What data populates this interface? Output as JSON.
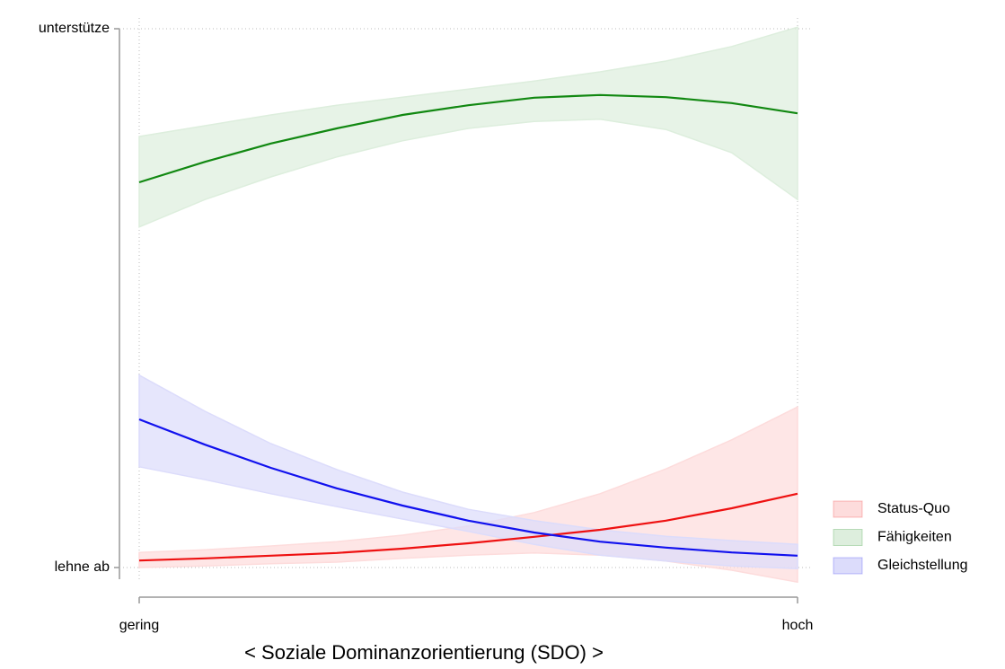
{
  "chart_data": {
    "type": "line",
    "x_label": "< Soziale Dominanzorientierung (SDO) >",
    "x": [
      0,
      0.1,
      0.2,
      0.3,
      0.4,
      0.5,
      0.6,
      0.7,
      0.8,
      0.9,
      1
    ],
    "xlim": [
      0,
      1
    ],
    "xticks": [
      {
        "value": 0,
        "label": "gering"
      },
      {
        "value": 1,
        "label": "hoch"
      }
    ],
    "ylim": [
      -0.035,
      1.005
    ],
    "yticks": [
      {
        "value": 0,
        "label": "lehne ab"
      },
      {
        "value": 1,
        "label": "unterstütze"
      }
    ],
    "grid": true,
    "legend": "lower right",
    "series": [
      {
        "name": "Status-Quo",
        "color": "#ee1111",
        "band_color": "#fddcdc",
        "values": [
          0.013,
          0.017,
          0.022,
          0.027,
          0.035,
          0.045,
          0.057,
          0.07,
          0.087,
          0.11,
          0.137
        ],
        "upper": [
          0.028,
          0.033,
          0.04,
          0.048,
          0.06,
          0.077,
          0.102,
          0.137,
          0.183,
          0.237,
          0.298
        ],
        "lower": [
          0,
          0.003,
          0.007,
          0.01,
          0.017,
          0.023,
          0.027,
          0.023,
          0.012,
          -0.005,
          -0.027
        ]
      },
      {
        "name": "Fähigkeiten",
        "color": "#118811",
        "band_color": "#ddeedd",
        "values": [
          0.715,
          0.753,
          0.787,
          0.815,
          0.84,
          0.858,
          0.872,
          0.877,
          0.873,
          0.862,
          0.843
        ],
        "upper": [
          0.8,
          0.82,
          0.84,
          0.858,
          0.873,
          0.888,
          0.903,
          0.92,
          0.94,
          0.967,
          1.003
        ],
        "lower": [
          0.632,
          0.683,
          0.725,
          0.762,
          0.792,
          0.815,
          0.828,
          0.832,
          0.813,
          0.77,
          0.683
        ]
      },
      {
        "name": "Gleichstellung",
        "color": "#1111ee",
        "band_color": "#dcdcfb",
        "values": [
          0.275,
          0.228,
          0.185,
          0.147,
          0.115,
          0.087,
          0.065,
          0.048,
          0.037,
          0.028,
          0.022
        ],
        "upper": [
          0.357,
          0.29,
          0.23,
          0.182,
          0.14,
          0.108,
          0.087,
          0.07,
          0.058,
          0.05,
          0.043
        ],
        "lower": [
          0.187,
          0.163,
          0.137,
          0.113,
          0.09,
          0.067,
          0.043,
          0.023,
          0.012,
          0.003,
          -0.002
        ]
      }
    ]
  }
}
